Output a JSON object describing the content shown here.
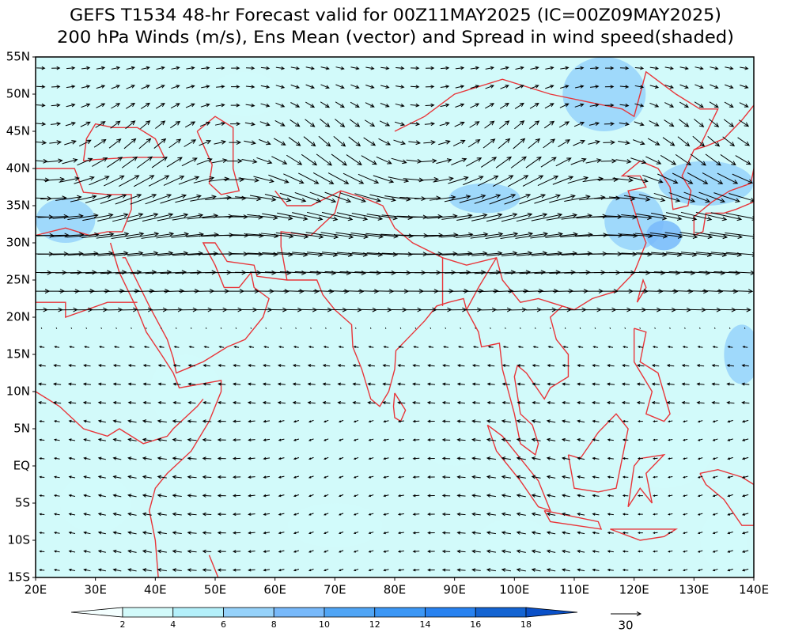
{
  "header": {
    "title": [
      "GEFS T1534 48-hr Forecast valid for 00Z11MAY2025 (IC=00Z09MAY2025)",
      "200 hPa Winds (m/s), Ens Mean (vector) and Spread in wind speed(shaded)"
    ]
  },
  "map": {
    "xlim": [
      20,
      140
    ],
    "ylim": [
      -15,
      55
    ],
    "xticks": [
      {
        "value": 20,
        "label": "20E"
      },
      {
        "value": 30,
        "label": "30E"
      },
      {
        "value": 40,
        "label": "40E"
      },
      {
        "value": 50,
        "label": "50E"
      },
      {
        "value": 60,
        "label": "60E"
      },
      {
        "value": 70,
        "label": "70E"
      },
      {
        "value": 80,
        "label": "80E"
      },
      {
        "value": 90,
        "label": "90E"
      },
      {
        "value": 100,
        "label": "100E"
      },
      {
        "value": 110,
        "label": "110E"
      },
      {
        "value": 120,
        "label": "120E"
      },
      {
        "value": 130,
        "label": "130E"
      },
      {
        "value": 140,
        "label": "140E"
      }
    ],
    "yticks": [
      {
        "value": 55,
        "label": "55N"
      },
      {
        "value": 50,
        "label": "50N"
      },
      {
        "value": 45,
        "label": "45N"
      },
      {
        "value": 40,
        "label": "40N"
      },
      {
        "value": 35,
        "label": "35N"
      },
      {
        "value": 30,
        "label": "30N"
      },
      {
        "value": 25,
        "label": "25N"
      },
      {
        "value": 20,
        "label": "20N"
      },
      {
        "value": 15,
        "label": "15N"
      },
      {
        "value": 10,
        "label": "10N"
      },
      {
        "value": 5,
        "label": "5N"
      },
      {
        "value": 0,
        "label": "EQ"
      },
      {
        "value": -5,
        "label": "5S"
      },
      {
        "value": -10,
        "label": "10S"
      },
      {
        "value": -15,
        "label": "15S"
      }
    ]
  },
  "colorbar": {
    "levels": [
      2,
      4,
      6,
      8,
      10,
      12,
      14,
      16,
      18
    ],
    "colors": [
      "#f4ffff",
      "#d2fafa",
      "#b4f0fa",
      "#96d2fa",
      "#78b9fa",
      "#50a5f5",
      "#3c97f5",
      "#2882f0",
      "#1464d2",
      "#0a50c8"
    ]
  },
  "reference_vector": 30
}
